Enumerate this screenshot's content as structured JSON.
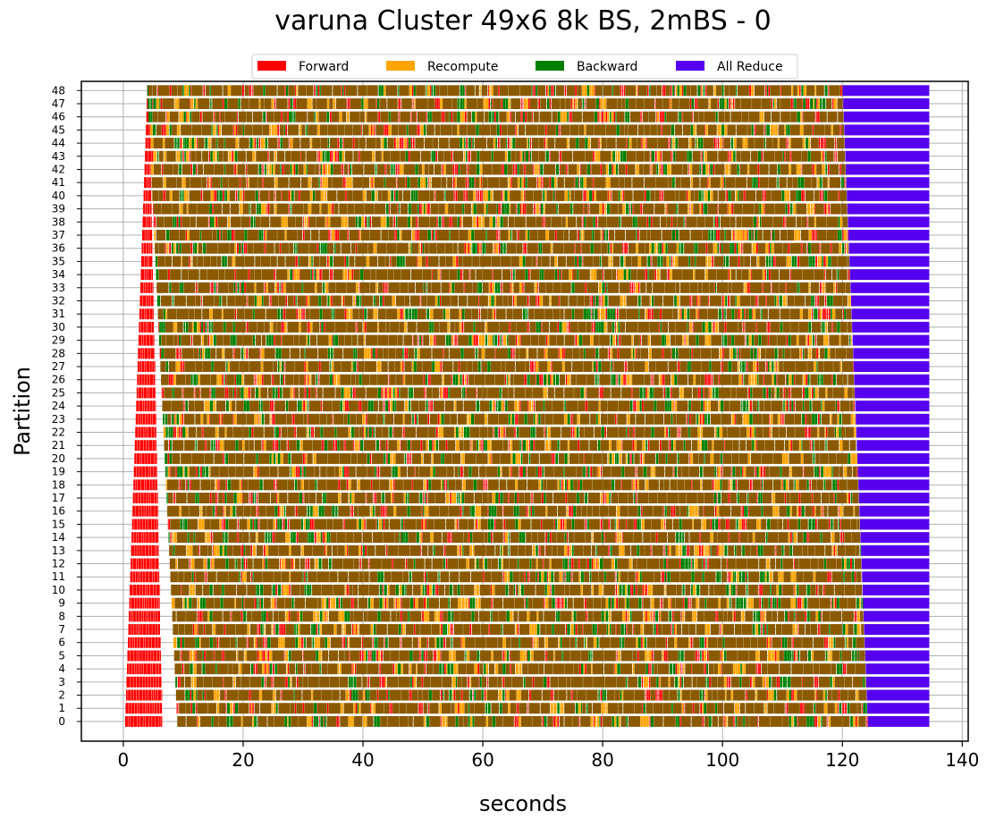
{
  "chart_data": {
    "type": "gantt",
    "title": "varuna Cluster 49x6 8k BS, 2mBS - 0",
    "xlabel": "seconds",
    "ylabel": "Partition",
    "xlim": [
      -7,
      141
    ],
    "ylim": [
      -1.5,
      48.7
    ],
    "xticks": [
      0,
      20,
      40,
      60,
      80,
      100,
      120,
      140
    ],
    "yticks": [
      0,
      1,
      2,
      3,
      4,
      5,
      6,
      7,
      8,
      9,
      10,
      11,
      12,
      13,
      14,
      15,
      16,
      17,
      18,
      19,
      20,
      21,
      22,
      23,
      24,
      25,
      26,
      27,
      28,
      29,
      30,
      31,
      32,
      33,
      34,
      35,
      36,
      37,
      38,
      39,
      40,
      41,
      42,
      43,
      44,
      45,
      46,
      47,
      48
    ],
    "grid": true,
    "legend": {
      "position": "top-center",
      "entries": [
        {
          "label": "Forward",
          "color": "#ff0000"
        },
        {
          "label": "Recompute",
          "color": "#ffa500"
        },
        {
          "label": "Backward",
          "color": "#008000"
        },
        {
          "label": "All Reduce",
          "color": "#5500ee"
        }
      ]
    },
    "compute_color": "#8b5a00",
    "partition_count": 49,
    "phases": {
      "forward_start_partition_0": 0.3,
      "forward_start_partition_48": 4.0,
      "forward_warmup_end_partition_0": 6.5,
      "forward_warmup_end_partition_48": 4.3,
      "compute_start_partition_0": 9.0,
      "compute_start_partition_48": 4.0,
      "compute_end_partition_0": 124.2,
      "compute_end_partition_48": 120.0,
      "allreduce_end": 134.5
    }
  }
}
